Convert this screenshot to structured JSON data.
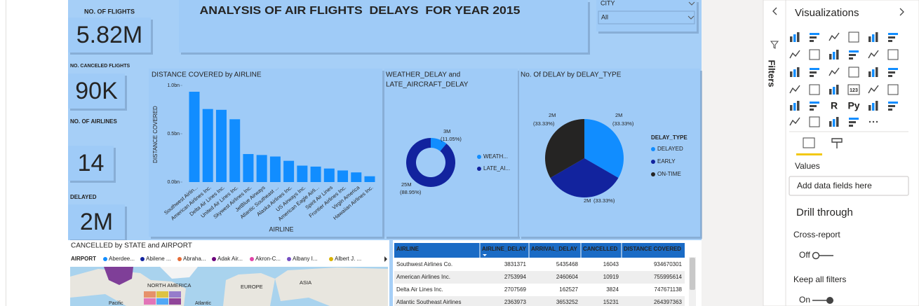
{
  "report": {
    "title": "ANALYSIS OF AIR FLIGHTS  DELAYS  FOR YEAR 2015",
    "kpis": [
      {
        "label": "NO. OF FLIGHTS",
        "value": "5.82M"
      },
      {
        "label": "NO. CANCELED FLIGHTS",
        "value": "90K"
      },
      {
        "label": "NO. OF AIRLINES",
        "value": "14"
      },
      {
        "label": "DELAYED",
        "value": "2M"
      }
    ],
    "slicer": {
      "label": "CITY",
      "value": "All"
    }
  },
  "chart_data": [
    {
      "type": "bar",
      "title": "DISTANCE COVERED by AIRLINE",
      "y_label": "DISTANCE COVERED",
      "x_label": "AIRLINE",
      "categories": [
        "Southwest Airlin...",
        "American Airlines Inc.",
        "Delta Air Lines Inc.",
        "United Air Lines Inc.",
        "Skywest Airlines Inc.",
        "JetBlue Airways",
        "Atlantic Southeast ...",
        "Alaska Airlines Inc.",
        "US Airways Inc.",
        "American Eagle Airli...",
        "Spirit Air Lines",
        "Frontier Airlines Inc.",
        "Virgin America",
        "Hawaiian Airlines Inc."
      ],
      "values": [
        934670301,
        755995614,
        747671138,
        650000000,
        290000000,
        280000000,
        264397363,
        220000000,
        170000000,
        160000000,
        140000000,
        120000000,
        100000000,
        60000000
      ],
      "color": "#118dff",
      "ylim": [
        0,
        1000000000
      ],
      "yticks": [
        {
          "value": 0,
          "label": "0.0bn"
        },
        {
          "value": 500000000,
          "label": "0.5bn"
        },
        {
          "value": 1000000000,
          "label": "1.0bn"
        }
      ]
    },
    {
      "type": "donut",
      "title": [
        "WEATHER_DELAY and",
        "LATE_AIRCRAFT_DELAY"
      ],
      "categories": [
        "WEATH...",
        "LATE_AI..."
      ],
      "values": [
        3000000,
        25000000
      ],
      "value_labels": [
        "3M",
        "25M"
      ],
      "percents": [
        11.05,
        88.95
      ],
      "percent_labels": [
        "(11.05%)",
        "(88.95%)"
      ],
      "colors": [
        "#118dff",
        "#12239e"
      ]
    },
    {
      "type": "pie",
      "title": "No. Of DELAY by DELAY_TYPE",
      "legend_title": "DELAY_TYPE",
      "categories": [
        "DELAYED",
        "EARLY",
        "ON-TIME"
      ],
      "values": [
        2000000,
        2000000,
        2000000
      ],
      "value_labels": [
        "2M",
        "2M",
        "2M"
      ],
      "percent_labels": [
        "(33.33%)",
        "(33.33%)",
        "(33.33%)"
      ],
      "colors": [
        "#118dff",
        "#12239e",
        "#252423"
      ]
    }
  ],
  "map": {
    "title": "CANCELLED by STATE and AIRPORT",
    "legend_title": "AIRPORT",
    "legend": [
      {
        "name": "Aberdee...",
        "color": "#118dff"
      },
      {
        "name": "Abilene ...",
        "color": "#12239e"
      },
      {
        "name": "Abraha...",
        "color": "#e66c37"
      },
      {
        "name": "Adak Air...",
        "color": "#6b007b"
      },
      {
        "name": "Akron-C...",
        "color": "#e044a7"
      },
      {
        "name": "Albany I...",
        "color": "#744ec2"
      },
      {
        "name": "Albert J. ...",
        "color": "#d9b300"
      }
    ],
    "places": [
      "NORTH AMERICA",
      "EUROPE",
      "ASIA",
      "Pacific",
      "Atlantic"
    ]
  },
  "table": {
    "columns": [
      "AIRLINE",
      "AIRLINE_DELAY",
      "ARRIVAL_DELAY",
      "CANCELLED",
      "DISTANCE COVERED"
    ],
    "rows": [
      [
        "Southwest Airlines Co.",
        3831371,
        5435468,
        16043,
        934670301
      ],
      [
        "American Airlines Inc.",
        2753994,
        2460604,
        10919,
        755995614
      ],
      [
        "Delta Air Lines Inc.",
        2707569,
        162527,
        3824,
        747671138
      ],
      [
        "Atlantic Southeast Airlines",
        2363973,
        3653252,
        15231,
        264397363
      ]
    ]
  },
  "panes": {
    "filters": "Filters",
    "visualizations": "Visualizations",
    "icon_labels": [
      "123",
      "R",
      "Py"
    ],
    "values": "Values",
    "add_fields": "Add data fields here",
    "drill_through": "Drill through",
    "cross_report": "Cross-report",
    "cross_report_state": "Off",
    "keep_filters": "Keep all filters",
    "keep_filters_state": "On"
  }
}
